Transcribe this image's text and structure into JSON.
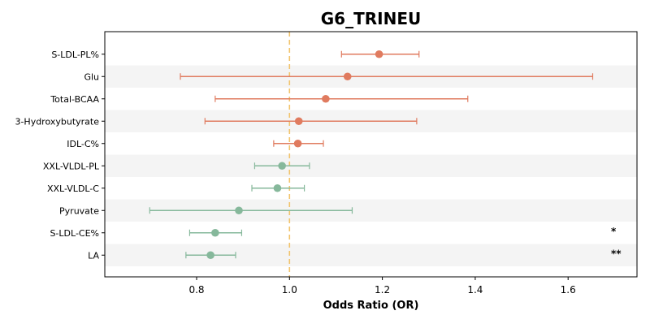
{
  "chart_data": {
    "type": "forest",
    "title": "G6_TRINEU",
    "xlabel": "Odds Ratio (OR)",
    "xlim": [
      0.6,
      1.75
    ],
    "xticks": [
      "0.8",
      "1.0",
      "1.2",
      "1.4",
      "1.6"
    ],
    "xtick_values": [
      0.8,
      1.0,
      1.2,
      1.4,
      1.6
    ],
    "reference_line": 1.0,
    "colors": {
      "increase": "#e07b5f",
      "decrease": "#86b89b",
      "reference": "#f2c36b",
      "band": "#f4f4f4"
    },
    "rows": [
      {
        "label": "S-LDL-PL%",
        "or": 1.193,
        "lower": 1.112,
        "upper": 1.279,
        "sig": ""
      },
      {
        "label": "Glu",
        "or": 1.125,
        "lower": 0.765,
        "upper": 1.653,
        "sig": ""
      },
      {
        "label": "Total-BCAA",
        "or": 1.078,
        "lower": 0.84,
        "upper": 1.384,
        "sig": ""
      },
      {
        "label": "3-Hydroxybutyrate",
        "or": 1.02,
        "lower": 0.818,
        "upper": 1.274,
        "sig": ""
      },
      {
        "label": "IDL-C%",
        "or": 1.018,
        "lower": 0.966,
        "upper": 1.073,
        "sig": ""
      },
      {
        "label": "XXL-VLDL-PL",
        "or": 0.984,
        "lower": 0.925,
        "upper": 1.043,
        "sig": ""
      },
      {
        "label": "XXL-VLDL-C",
        "or": 0.974,
        "lower": 0.919,
        "upper": 1.032,
        "sig": ""
      },
      {
        "label": "Pyruvate",
        "or": 0.891,
        "lower": 0.699,
        "upper": 1.135,
        "sig": ""
      },
      {
        "label": "S-LDL-CE%",
        "or": 0.84,
        "lower": 0.785,
        "upper": 0.897,
        "sig": "*"
      },
      {
        "label": "LA",
        "or": 0.83,
        "lower": 0.777,
        "upper": 0.884,
        "sig": "**"
      }
    ]
  }
}
